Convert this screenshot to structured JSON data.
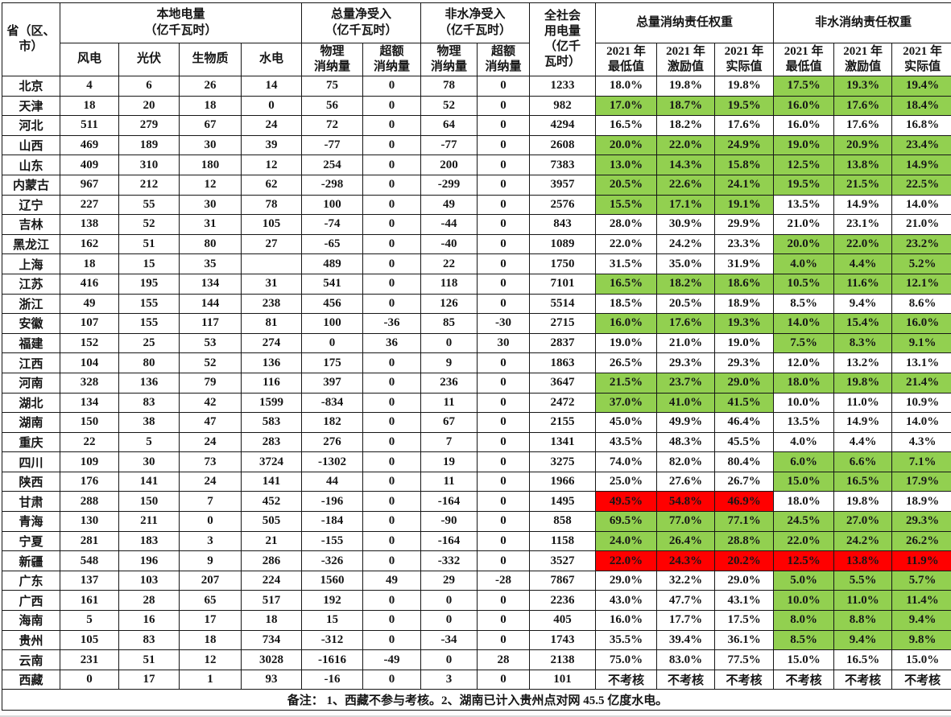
{
  "colors": {
    "highlight_green": "#92d050",
    "alert_red": "#ff0000",
    "grid_line": "#161616"
  },
  "table": {
    "header": {
      "province": "省（区、\n市）",
      "local_title": "本地电量\n（亿千瓦时）",
      "col_wind": "风电",
      "col_solar": "光伏",
      "col_bio": "生物质",
      "col_hydro": "水电",
      "total_net_title": "总量净受入\n（亿千瓦时）",
      "nonhydro_net_title": "非水净受入\n（亿千瓦时）",
      "col_physical": "物理\n消纳量",
      "col_excess": "超额\n消纳量",
      "society_title": "全社会\n用电量\n（亿千\n瓦时）",
      "total_weight_title": "总量消纳责任权重",
      "nonhydro_weight_title": "非水消纳责任权重",
      "col_min": "2021 年\n最低值",
      "col_incentive": "2021 年\n激励值",
      "col_actual": "2021 年\n实际值"
    },
    "rows": [
      {
        "province": "北京",
        "v": [
          "4",
          "6",
          "26",
          "14",
          "75",
          "0",
          "78",
          "0",
          "1233",
          "18.0%",
          "19.8%",
          "19.8%",
          "17.5%",
          "19.3%",
          "19.4%"
        ],
        "total_fill": "none",
        "nonhydro_fill": "green"
      },
      {
        "province": "天津",
        "v": [
          "18",
          "20",
          "18",
          "0",
          "56",
          "0",
          "52",
          "0",
          "982",
          "17.0%",
          "18.7%",
          "19.5%",
          "16.0%",
          "17.6%",
          "18.4%"
        ],
        "total_fill": "green",
        "nonhydro_fill": "green"
      },
      {
        "province": "河北",
        "v": [
          "511",
          "279",
          "67",
          "24",
          "72",
          "0",
          "64",
          "0",
          "4294",
          "16.5%",
          "18.2%",
          "17.6%",
          "16.0%",
          "17.6%",
          "16.8%"
        ],
        "total_fill": "none",
        "nonhydro_fill": "none"
      },
      {
        "province": "山西",
        "v": [
          "469",
          "189",
          "30",
          "39",
          "-77",
          "0",
          "-77",
          "0",
          "2608",
          "20.0%",
          "22.0%",
          "24.9%",
          "19.0%",
          "20.9%",
          "23.4%"
        ],
        "total_fill": "green",
        "nonhydro_fill": "green"
      },
      {
        "province": "山东",
        "v": [
          "409",
          "310",
          "180",
          "12",
          "254",
          "0",
          "200",
          "0",
          "7383",
          "13.0%",
          "14.3%",
          "15.8%",
          "12.5%",
          "13.8%",
          "14.9%"
        ],
        "total_fill": "green",
        "nonhydro_fill": "green"
      },
      {
        "province": "内蒙古",
        "v": [
          "967",
          "212",
          "12",
          "62",
          "-298",
          "0",
          "-299",
          "0",
          "3957",
          "20.5%",
          "22.6%",
          "24.1%",
          "19.5%",
          "21.5%",
          "22.5%"
        ],
        "total_fill": "green",
        "nonhydro_fill": "green"
      },
      {
        "province": "辽宁",
        "v": [
          "227",
          "55",
          "30",
          "78",
          "100",
          "0",
          "49",
          "0",
          "2576",
          "15.5%",
          "17.1%",
          "19.1%",
          "13.5%",
          "14.9%",
          "14.0%"
        ],
        "total_fill": "green",
        "nonhydro_fill": "none"
      },
      {
        "province": "吉林",
        "v": [
          "138",
          "52",
          "31",
          "105",
          "-74",
          "0",
          "-44",
          "0",
          "843",
          "28.0%",
          "30.9%",
          "29.9%",
          "21.0%",
          "23.1%",
          "21.0%"
        ],
        "total_fill": "none",
        "nonhydro_fill": "none"
      },
      {
        "province": "黑龙江",
        "v": [
          "162",
          "51",
          "80",
          "27",
          "-65",
          "0",
          "-40",
          "0",
          "1089",
          "22.0%",
          "24.2%",
          "23.3%",
          "20.0%",
          "22.0%",
          "23.2%"
        ],
        "total_fill": "none",
        "nonhydro_fill": "green"
      },
      {
        "province": "上海",
        "v": [
          "18",
          "15",
          "35",
          "",
          "489",
          "0",
          "22",
          "0",
          "1750",
          "31.5%",
          "35.0%",
          "31.9%",
          "4.0%",
          "4.4%",
          "5.2%"
        ],
        "total_fill": "none",
        "nonhydro_fill": "green"
      },
      {
        "province": "江苏",
        "v": [
          "416",
          "195",
          "134",
          "31",
          "541",
          "0",
          "118",
          "0",
          "7101",
          "16.5%",
          "18.2%",
          "18.6%",
          "10.5%",
          "11.6%",
          "12.1%"
        ],
        "total_fill": "green",
        "nonhydro_fill": "green"
      },
      {
        "province": "浙江",
        "v": [
          "49",
          "155",
          "144",
          "238",
          "456",
          "0",
          "126",
          "0",
          "5514",
          "18.5%",
          "20.5%",
          "18.9%",
          "8.5%",
          "9.4%",
          "8.6%"
        ],
        "total_fill": "none",
        "nonhydro_fill": "none"
      },
      {
        "province": "安徽",
        "v": [
          "107",
          "155",
          "117",
          "81",
          "100",
          "-36",
          "85",
          "-30",
          "2715",
          "16.0%",
          "17.6%",
          "19.3%",
          "14.0%",
          "15.4%",
          "16.0%"
        ],
        "total_fill": "green",
        "nonhydro_fill": "green"
      },
      {
        "province": "福建",
        "v": [
          "152",
          "25",
          "53",
          "274",
          "0",
          "36",
          "0",
          "30",
          "2837",
          "19.0%",
          "21.0%",
          "19.0%",
          "7.5%",
          "8.3%",
          "9.1%"
        ],
        "total_fill": "none",
        "nonhydro_fill": "green"
      },
      {
        "province": "江西",
        "v": [
          "104",
          "80",
          "52",
          "136",
          "175",
          "0",
          "9",
          "0",
          "1863",
          "26.5%",
          "29.3%",
          "29.3%",
          "12.0%",
          "13.2%",
          "13.1%"
        ],
        "total_fill": "none",
        "nonhydro_fill": "none"
      },
      {
        "province": "河南",
        "v": [
          "328",
          "136",
          "79",
          "116",
          "397",
          "0",
          "236",
          "0",
          "3647",
          "21.5%",
          "23.7%",
          "29.0%",
          "18.0%",
          "19.8%",
          "21.4%"
        ],
        "total_fill": "green",
        "nonhydro_fill": "green"
      },
      {
        "province": "湖北",
        "v": [
          "134",
          "83",
          "42",
          "1599",
          "-834",
          "0",
          "11",
          "0",
          "2472",
          "37.0%",
          "41.0%",
          "41.5%",
          "10.0%",
          "11.0%",
          "10.9%"
        ],
        "total_fill": "green",
        "nonhydro_fill": "none"
      },
      {
        "province": "湖南",
        "v": [
          "150",
          "38",
          "47",
          "583",
          "182",
          "0",
          "67",
          "0",
          "2155",
          "45.0%",
          "49.9%",
          "46.4%",
          "13.5%",
          "14.9%",
          "14.0%"
        ],
        "total_fill": "none",
        "nonhydro_fill": "none"
      },
      {
        "province": "重庆",
        "v": [
          "22",
          "5",
          "24",
          "283",
          "276",
          "0",
          "7",
          "0",
          "1341",
          "43.5%",
          "48.3%",
          "45.5%",
          "4.0%",
          "4.4%",
          "4.3%"
        ],
        "total_fill": "none",
        "nonhydro_fill": "none"
      },
      {
        "province": "四川",
        "v": [
          "109",
          "30",
          "73",
          "3724",
          "-1302",
          "0",
          "19",
          "0",
          "3275",
          "74.0%",
          "82.0%",
          "80.4%",
          "6.0%",
          "6.6%",
          "7.1%"
        ],
        "total_fill": "none",
        "nonhydro_fill": "green"
      },
      {
        "province": "陕西",
        "v": [
          "176",
          "141",
          "24",
          "141",
          "44",
          "0",
          "11",
          "0",
          "1966",
          "25.0%",
          "27.6%",
          "26.7%",
          "15.0%",
          "16.5%",
          "17.9%"
        ],
        "total_fill": "none",
        "nonhydro_fill": "green"
      },
      {
        "province": "甘肃",
        "v": [
          "288",
          "150",
          "7",
          "452",
          "-196",
          "0",
          "-164",
          "0",
          "1495",
          "49.5%",
          "54.8%",
          "46.9%",
          "18.0%",
          "19.8%",
          "18.9%"
        ],
        "total_fill": "red",
        "nonhydro_fill": "none"
      },
      {
        "province": "青海",
        "v": [
          "130",
          "211",
          "0",
          "505",
          "-184",
          "0",
          "-90",
          "0",
          "858",
          "69.5%",
          "77.0%",
          "77.1%",
          "24.5%",
          "27.0%",
          "29.3%"
        ],
        "total_fill": "green",
        "nonhydro_fill": "green"
      },
      {
        "province": "宁夏",
        "v": [
          "281",
          "183",
          "3",
          "21",
          "-155",
          "0",
          "-164",
          "0",
          "1158",
          "24.0%",
          "26.4%",
          "28.8%",
          "22.0%",
          "24.2%",
          "26.2%"
        ],
        "total_fill": "green",
        "nonhydro_fill": "green"
      },
      {
        "province": "新疆",
        "v": [
          "548",
          "196",
          "9",
          "286",
          "-326",
          "0",
          "-332",
          "0",
          "3527",
          "22.0%",
          "24.3%",
          "20.2%",
          "12.5%",
          "13.8%",
          "11.9%"
        ],
        "total_fill": "red",
        "nonhydro_fill": "red"
      },
      {
        "province": "广东",
        "v": [
          "137",
          "103",
          "207",
          "224",
          "1560",
          "49",
          "29",
          "-28",
          "7867",
          "29.0%",
          "32.2%",
          "29.0%",
          "5.0%",
          "5.5%",
          "5.7%"
        ],
        "total_fill": "none",
        "nonhydro_fill": "green"
      },
      {
        "province": "广西",
        "v": [
          "161",
          "28",
          "65",
          "517",
          "192",
          "0",
          "0",
          "0",
          "2236",
          "43.0%",
          "47.7%",
          "43.1%",
          "10.0%",
          "11.0%",
          "11.4%"
        ],
        "total_fill": "none",
        "nonhydro_fill": "green"
      },
      {
        "province": "海南",
        "v": [
          "5",
          "16",
          "17",
          "18",
          "15",
          "0",
          "0",
          "0",
          "405",
          "16.0%",
          "17.7%",
          "17.5%",
          "8.0%",
          "8.8%",
          "9.4%"
        ],
        "total_fill": "none",
        "nonhydro_fill": "green"
      },
      {
        "province": "贵州",
        "v": [
          "105",
          "83",
          "18",
          "734",
          "-312",
          "0",
          "-34",
          "0",
          "1743",
          "35.5%",
          "39.4%",
          "36.1%",
          "8.5%",
          "9.4%",
          "9.8%"
        ],
        "total_fill": "none",
        "nonhydro_fill": "green"
      },
      {
        "province": "云南",
        "v": [
          "231",
          "51",
          "12",
          "3028",
          "-1616",
          "-49",
          "0",
          "28",
          "2138",
          "75.0%",
          "83.0%",
          "77.5%",
          "15.0%",
          "16.5%",
          "15.0%"
        ],
        "total_fill": "none",
        "nonhydro_fill": "none"
      },
      {
        "province": "西藏",
        "v": [
          "0",
          "17",
          "1",
          "93",
          "-16",
          "0",
          "3",
          "0",
          "101",
          "不考核",
          "不考核",
          "不考核",
          "不考核",
          "不考核",
          "不考核"
        ],
        "total_fill": "none",
        "nonhydro_fill": "none"
      }
    ],
    "note": "备注：  1、西藏不参与考核。2、湖南已计入贵州点对网 45.5 亿度水电。"
  }
}
